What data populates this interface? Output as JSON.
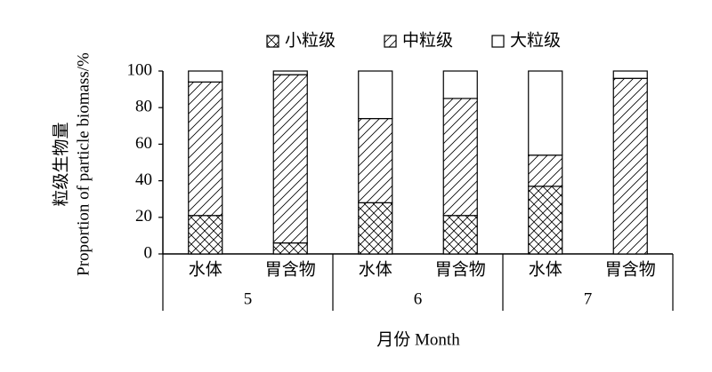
{
  "chart_data": {
    "type": "stacked-bar",
    "y_title": [
      "粒级生物量",
      "Proportion of particle biomass/%"
    ],
    "x_title": "月份 Month",
    "categories": [
      "水体",
      "胃含物",
      "水体",
      "胃含物",
      "水体",
      "胃含物"
    ],
    "groups": [
      "5",
      "6",
      "7"
    ],
    "series": [
      {
        "name": "小粒级",
        "color": "#000000",
        "pattern": "crosshatch",
        "values": [
          21,
          6,
          28,
          21,
          37,
          0
        ]
      },
      {
        "name": "中粒级",
        "color": "#000000",
        "pattern": "diagonal",
        "values": [
          73,
          92,
          46,
          64,
          17,
          96
        ]
      },
      {
        "name": "大粒级",
        "color": "#000000",
        "pattern": "none",
        "values": [
          6,
          2,
          26,
          15,
          46,
          4
        ]
      }
    ],
    "ylim": [
      0,
      100
    ],
    "yticks": [
      0,
      20,
      40,
      60,
      80,
      100
    ],
    "grid": false,
    "legend": "top"
  }
}
